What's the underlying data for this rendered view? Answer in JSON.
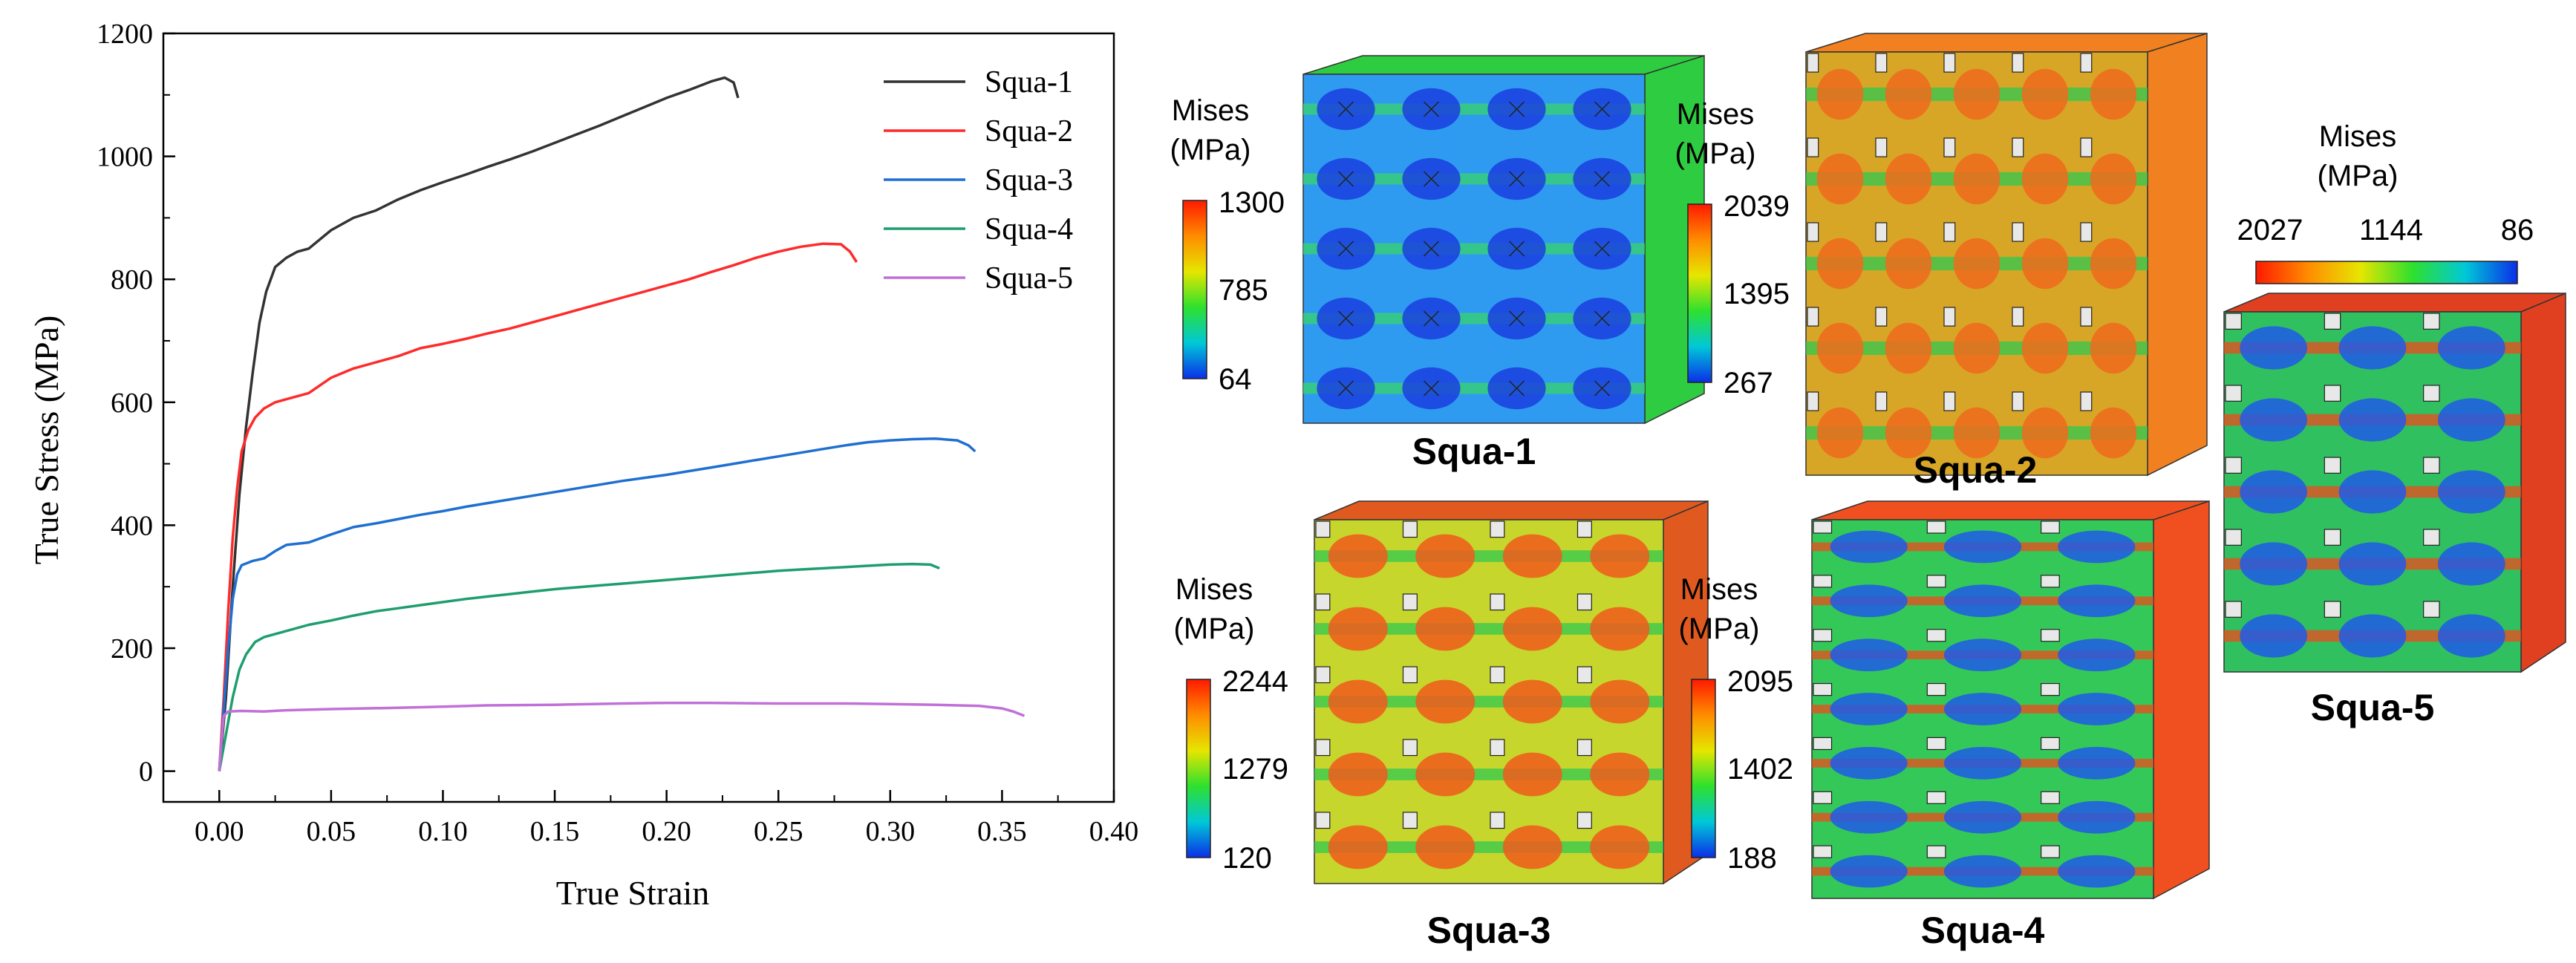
{
  "chart_data": {
    "type": "line",
    "title": "",
    "xlabel": "True Strain",
    "ylabel": "True Stress (MPa)",
    "xlim": [
      -0.025,
      0.4
    ],
    "ylim": [
      -50,
      1200
    ],
    "x_ticks": [
      "0.00",
      "0.05",
      "0.10",
      "0.15",
      "0.20",
      "0.25",
      "0.30",
      "0.35",
      "0.40"
    ],
    "y_ticks": [
      "0",
      "200",
      "400",
      "600",
      "800",
      "1000",
      "1200"
    ],
    "grid": false,
    "legend_position": "top-right",
    "series": [
      {
        "name": "Squa-1",
        "color": "#333333",
        "points": [
          [
            0,
            0
          ],
          [
            0.003,
            120
          ],
          [
            0.006,
            300
          ],
          [
            0.009,
            450
          ],
          [
            0.012,
            560
          ],
          [
            0.015,
            650
          ],
          [
            0.018,
            730
          ],
          [
            0.021,
            780
          ],
          [
            0.025,
            820
          ],
          [
            0.03,
            835
          ],
          [
            0.035,
            845
          ],
          [
            0.04,
            850
          ],
          [
            0.05,
            880
          ],
          [
            0.06,
            900
          ],
          [
            0.07,
            912
          ],
          [
            0.08,
            930
          ],
          [
            0.09,
            945
          ],
          [
            0.1,
            958
          ],
          [
            0.11,
            970
          ],
          [
            0.12,
            983
          ],
          [
            0.13,
            995
          ],
          [
            0.14,
            1008
          ],
          [
            0.15,
            1022
          ],
          [
            0.16,
            1036
          ],
          [
            0.17,
            1050
          ],
          [
            0.18,
            1065
          ],
          [
            0.19,
            1080
          ],
          [
            0.2,
            1095
          ],
          [
            0.21,
            1108
          ],
          [
            0.22,
            1122
          ],
          [
            0.226,
            1128
          ],
          [
            0.23,
            1120
          ],
          [
            0.232,
            1095
          ]
        ]
      },
      {
        "name": "Squa-2",
        "color": "#ff2a2a",
        "points": [
          [
            0,
            0
          ],
          [
            0.002,
            120
          ],
          [
            0.004,
            260
          ],
          [
            0.006,
            380
          ],
          [
            0.008,
            460
          ],
          [
            0.01,
            520
          ],
          [
            0.013,
            555
          ],
          [
            0.016,
            575
          ],
          [
            0.02,
            590
          ],
          [
            0.025,
            600
          ],
          [
            0.03,
            605
          ],
          [
            0.04,
            615
          ],
          [
            0.05,
            640
          ],
          [
            0.06,
            655
          ],
          [
            0.07,
            665
          ],
          [
            0.08,
            675
          ],
          [
            0.09,
            688
          ],
          [
            0.1,
            695
          ],
          [
            0.11,
            703
          ],
          [
            0.12,
            712
          ],
          [
            0.13,
            720
          ],
          [
            0.14,
            730
          ],
          [
            0.15,
            740
          ],
          [
            0.16,
            750
          ],
          [
            0.17,
            760
          ],
          [
            0.18,
            770
          ],
          [
            0.19,
            780
          ],
          [
            0.2,
            790
          ],
          [
            0.21,
            800
          ],
          [
            0.22,
            812
          ],
          [
            0.23,
            823
          ],
          [
            0.24,
            835
          ],
          [
            0.25,
            845
          ],
          [
            0.26,
            853
          ],
          [
            0.27,
            858
          ],
          [
            0.278,
            857
          ],
          [
            0.282,
            845
          ],
          [
            0.285,
            828
          ]
        ]
      },
      {
        "name": "Squa-3",
        "color": "#1f6fd1",
        "points": [
          [
            0,
            0
          ],
          [
            0.002,
            100
          ],
          [
            0.004,
            200
          ],
          [
            0.006,
            280
          ],
          [
            0.008,
            320
          ],
          [
            0.01,
            335
          ],
          [
            0.015,
            342
          ],
          [
            0.02,
            346
          ],
          [
            0.025,
            358
          ],
          [
            0.03,
            368
          ],
          [
            0.04,
            372
          ],
          [
            0.05,
            385
          ],
          [
            0.06,
            397
          ],
          [
            0.07,
            403
          ],
          [
            0.08,
            410
          ],
          [
            0.09,
            417
          ],
          [
            0.1,
            423
          ],
          [
            0.11,
            430
          ],
          [
            0.12,
            436
          ],
          [
            0.13,
            442
          ],
          [
            0.14,
            448
          ],
          [
            0.15,
            454
          ],
          [
            0.16,
            460
          ],
          [
            0.17,
            466
          ],
          [
            0.18,
            472
          ],
          [
            0.19,
            477
          ],
          [
            0.2,
            482
          ],
          [
            0.21,
            488
          ],
          [
            0.22,
            494
          ],
          [
            0.23,
            500
          ],
          [
            0.24,
            506
          ],
          [
            0.25,
            512
          ],
          [
            0.26,
            518
          ],
          [
            0.27,
            524
          ],
          [
            0.28,
            530
          ],
          [
            0.29,
            535
          ],
          [
            0.3,
            538
          ],
          [
            0.31,
            540
          ],
          [
            0.32,
            541
          ],
          [
            0.33,
            538
          ],
          [
            0.335,
            530
          ],
          [
            0.338,
            520
          ]
        ]
      },
      {
        "name": "Squa-4",
        "color": "#1e9e6e",
        "points": [
          [
            0,
            0
          ],
          [
            0.003,
            60
          ],
          [
            0.006,
            120
          ],
          [
            0.009,
            165
          ],
          [
            0.012,
            190
          ],
          [
            0.016,
            210
          ],
          [
            0.02,
            218
          ],
          [
            0.03,
            228
          ],
          [
            0.04,
            238
          ],
          [
            0.05,
            245
          ],
          [
            0.06,
            253
          ],
          [
            0.07,
            260
          ],
          [
            0.08,
            265
          ],
          [
            0.09,
            270
          ],
          [
            0.1,
            275
          ],
          [
            0.11,
            280
          ],
          [
            0.12,
            284
          ],
          [
            0.13,
            288
          ],
          [
            0.14,
            292
          ],
          [
            0.15,
            296
          ],
          [
            0.16,
            299
          ],
          [
            0.17,
            302
          ],
          [
            0.18,
            305
          ],
          [
            0.19,
            308
          ],
          [
            0.2,
            311
          ],
          [
            0.21,
            314
          ],
          [
            0.22,
            317
          ],
          [
            0.23,
            320
          ],
          [
            0.24,
            323
          ],
          [
            0.25,
            326
          ],
          [
            0.26,
            328
          ],
          [
            0.27,
            330
          ],
          [
            0.28,
            332
          ],
          [
            0.29,
            334
          ],
          [
            0.3,
            336
          ],
          [
            0.31,
            337
          ],
          [
            0.318,
            336
          ],
          [
            0.322,
            330
          ]
        ]
      },
      {
        "name": "Squa-5",
        "color": "#c070d8",
        "points": [
          [
            0,
            0
          ],
          [
            0.001,
            50
          ],
          [
            0.002,
            90
          ],
          [
            0.004,
            97
          ],
          [
            0.01,
            98
          ],
          [
            0.02,
            97
          ],
          [
            0.03,
            99
          ],
          [
            0.05,
            101
          ],
          [
            0.08,
            103
          ],
          [
            0.1,
            105
          ],
          [
            0.12,
            107
          ],
          [
            0.15,
            108
          ],
          [
            0.18,
            110
          ],
          [
            0.2,
            111
          ],
          [
            0.22,
            111
          ],
          [
            0.25,
            110
          ],
          [
            0.28,
            110
          ],
          [
            0.3,
            109
          ],
          [
            0.32,
            108
          ],
          [
            0.34,
            106
          ],
          [
            0.35,
            102
          ],
          [
            0.355,
            97
          ],
          [
            0.36,
            90
          ]
        ]
      }
    ]
  },
  "fea_panels": [
    {
      "model": "Squa-1",
      "legend_title_1": "Mises",
      "legend_title_2": "(MPa)",
      "max": "1300",
      "mid": "785",
      "min": "64",
      "base_color": "#2f9bf0",
      "spot_color": "#1a3ee0",
      "accent_color": "#38d46a",
      "edge_color": "#2ecc40"
    },
    {
      "model": "Squa-2",
      "legend_title_1": "Mises",
      "legend_title_2": "(MPa)",
      "max": "2039",
      "mid": "1395",
      "min": "267",
      "base_color": "#d8a626",
      "spot_color": "#f06a1c",
      "accent_color": "#30c850",
      "edge_color": "#f08020"
    },
    {
      "model": "Squa-3",
      "legend_title_1": "Mises",
      "legend_title_2": "(MPa)",
      "max": "2244",
      "mid": "1279",
      "min": "120",
      "base_color": "#c6d62c",
      "spot_color": "#f05a1c",
      "accent_color": "#30c850",
      "edge_color": "#e05a20"
    },
    {
      "model": "Squa-4",
      "legend_title_1": "Mises",
      "legend_title_2": "(MPa)",
      "max": "2095",
      "mid": "1402",
      "min": "188",
      "base_color": "#34c858",
      "spot_color": "#1f5ae8",
      "accent_color": "#f04a1c",
      "edge_color": "#f05020"
    },
    {
      "model": "Squa-5",
      "legend_title_1": "Mises",
      "legend_title_2": "(MPa)",
      "max": "2027",
      "mid": "1144",
      "min": "86",
      "base_color": "#30c060",
      "spot_color": "#1f5ae8",
      "accent_color": "#f04a1c",
      "edge_color": "#e04020"
    }
  ]
}
